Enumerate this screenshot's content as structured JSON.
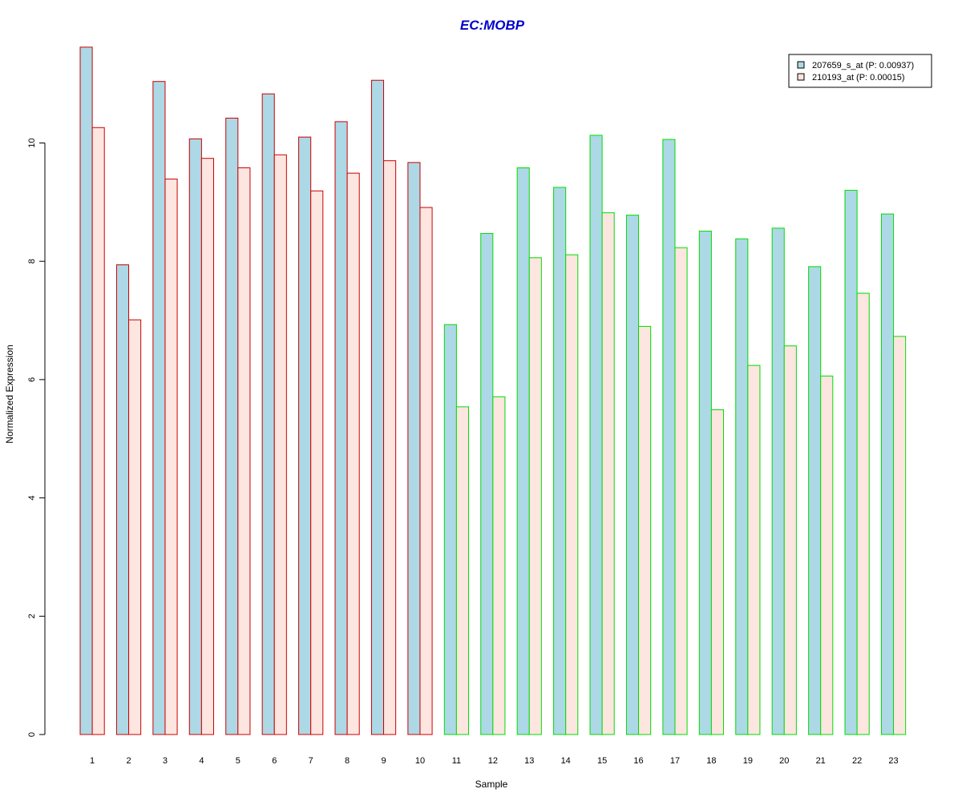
{
  "chart_data": {
    "type": "bar",
    "title": "EC:MOBP",
    "xlabel": "Sample",
    "ylabel": "Normalized Expression",
    "ylim": [
      0,
      12
    ],
    "yticks": [
      "0",
      "2",
      "4",
      "6",
      "8",
      "10"
    ],
    "grid": false,
    "legend_position": "top-right",
    "categories": [
      "1",
      "2",
      "3",
      "4",
      "5",
      "6",
      "7",
      "8",
      "9",
      "10",
      "11",
      "12",
      "13",
      "14",
      "15",
      "16",
      "17",
      "18",
      "19",
      "20",
      "21",
      "22",
      "23"
    ],
    "group_border_colors": [
      "#cc0000",
      "#cc0000",
      "#cc0000",
      "#cc0000",
      "#cc0000",
      "#cc0000",
      "#cc0000",
      "#cc0000",
      "#cc0000",
      "#cc0000",
      "#00dd00",
      "#00dd00",
      "#00dd00",
      "#00dd00",
      "#00dd00",
      "#00dd00",
      "#00dd00",
      "#00dd00",
      "#00dd00",
      "#00dd00",
      "#00dd00",
      "#00dd00",
      "#00dd00"
    ],
    "series": [
      {
        "name": "207659_s_at (P: 0.00937)",
        "fill": "#add8e6",
        "values": [
          11.62,
          7.94,
          11.04,
          10.07,
          10.42,
          10.83,
          10.1,
          10.36,
          11.06,
          9.67,
          6.93,
          8.47,
          9.58,
          9.25,
          10.13,
          8.78,
          10.06,
          8.51,
          8.38,
          8.56,
          7.91,
          9.2,
          8.8
        ]
      },
      {
        "name": "210193_at (P: 0.00015)",
        "fill": "#fde5e0",
        "values": [
          10.26,
          7.01,
          9.39,
          9.74,
          9.58,
          9.8,
          9.19,
          9.49,
          9.7,
          8.91,
          5.54,
          5.71,
          8.06,
          8.11,
          8.82,
          6.9,
          8.23,
          5.49,
          6.24,
          6.57,
          6.06,
          7.46,
          6.73
        ]
      }
    ],
    "colors": {
      "title": "#0000cc",
      "axis": "#000000"
    }
  }
}
